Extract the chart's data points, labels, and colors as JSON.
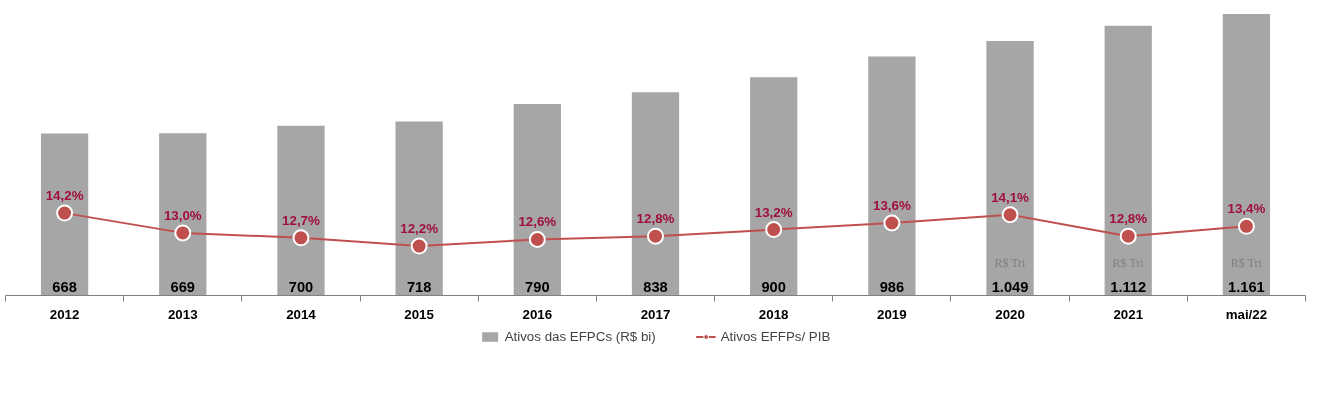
{
  "chart_data": {
    "type": "bar",
    "categories": [
      "2012",
      "2013",
      "2014",
      "2015",
      "2016",
      "2017",
      "2018",
      "2019",
      "2020",
      "2021",
      "mai/22"
    ],
    "series": [
      {
        "name": "Ativos das EFPCs (R$ bi)",
        "color": "#a6a6a6",
        "values": [
          668,
          669,
          700,
          718,
          790,
          838,
          900,
          986,
          1049,
          1112,
          1161
        ],
        "value_labels": [
          "668",
          "669",
          "700",
          "718",
          "790",
          "838",
          "900",
          "986",
          "1.049",
          "1.112",
          "1.161"
        ]
      },
      {
        "name": "Ativos EFFPs/ PIB",
        "type": "line",
        "axis": "y2",
        "color": "#c0504d",
        "marker": "circle",
        "values": [
          14.2,
          13.0,
          12.7,
          12.2,
          12.6,
          12.8,
          13.2,
          13.6,
          14.1,
          12.8,
          13.4
        ],
        "value_labels": [
          "14,2%",
          "13,0%",
          "12,7%",
          "12,2%",
          "12,6%",
          "12,8%",
          "13,2%",
          "13,6%",
          "14,1%",
          "12,8%",
          "13,4%"
        ]
      }
    ],
    "annotations": [
      "R$ Tri",
      "R$ Tri",
      "R$ Tri"
    ],
    "tick_labels": "x",
    "legend": "bottom"
  }
}
